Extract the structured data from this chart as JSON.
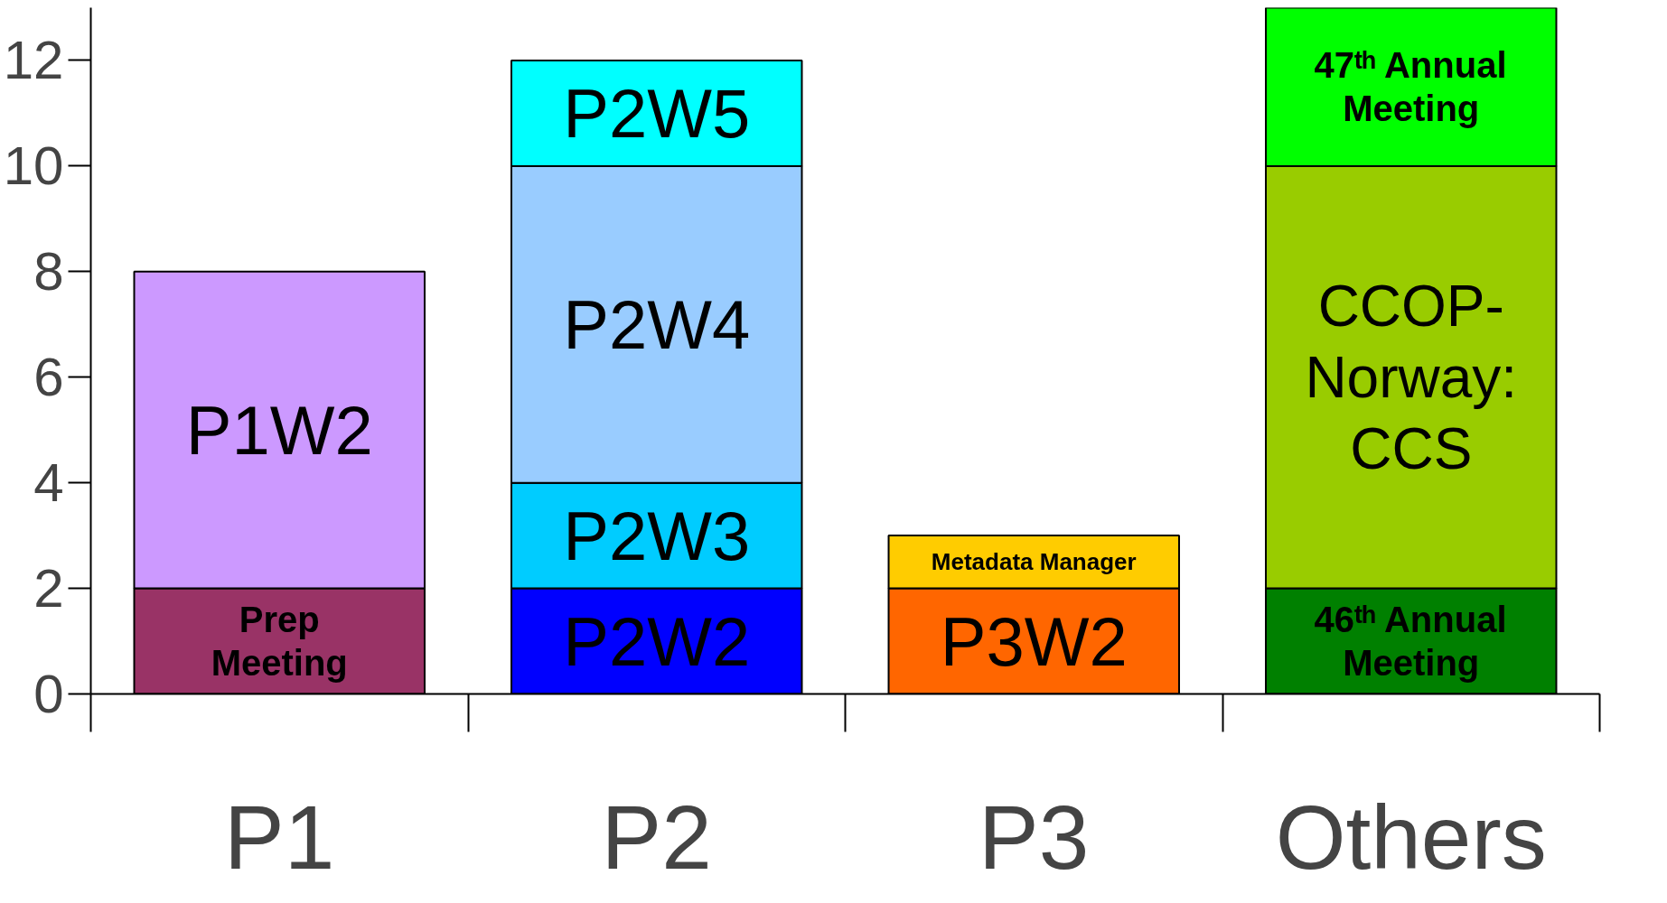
{
  "chart_data": {
    "type": "bar",
    "stacked": true,
    "categories": [
      "P1",
      "P2",
      "P3",
      "Others"
    ],
    "ylim": [
      0,
      13
    ],
    "yticks": [
      0,
      2,
      4,
      6,
      8,
      10,
      12
    ],
    "grid": false,
    "legend": false,
    "series": [
      {
        "name": "Prep Meeting",
        "color": "#993366",
        "values": [
          2,
          null,
          null,
          null
        ]
      },
      {
        "name": "P1W2",
        "color": "#cc99ff",
        "values": [
          6,
          null,
          null,
          null
        ]
      },
      {
        "name": "P2W2",
        "color": "#0000ff",
        "values": [
          null,
          2,
          null,
          null
        ]
      },
      {
        "name": "P2W3",
        "color": "#00ccff",
        "values": [
          null,
          2,
          null,
          null
        ]
      },
      {
        "name": "P2W4",
        "color": "#99ccff",
        "values": [
          null,
          6,
          null,
          null
        ]
      },
      {
        "name": "P2W5",
        "color": "#00ffff",
        "values": [
          null,
          2,
          null,
          null
        ]
      },
      {
        "name": "P3W2",
        "color": "#ff6600",
        "values": [
          null,
          null,
          2,
          null
        ]
      },
      {
        "name": "Metadata Manager",
        "color": "#ffcc00",
        "values": [
          null,
          null,
          1,
          null
        ]
      },
      {
        "name": "46ᵗʰ Annual Meeting",
        "color": "#008000",
        "values": [
          null,
          null,
          null,
          2
        ]
      },
      {
        "name": "CCOP-Norway: CCS",
        "color": "#99cc00",
        "values": [
          null,
          null,
          null,
          8
        ]
      },
      {
        "name": "47ᵗʰ Annual Meeting",
        "color": "#00ff00",
        "values": [
          null,
          null,
          null,
          3
        ]
      }
    ]
  }
}
